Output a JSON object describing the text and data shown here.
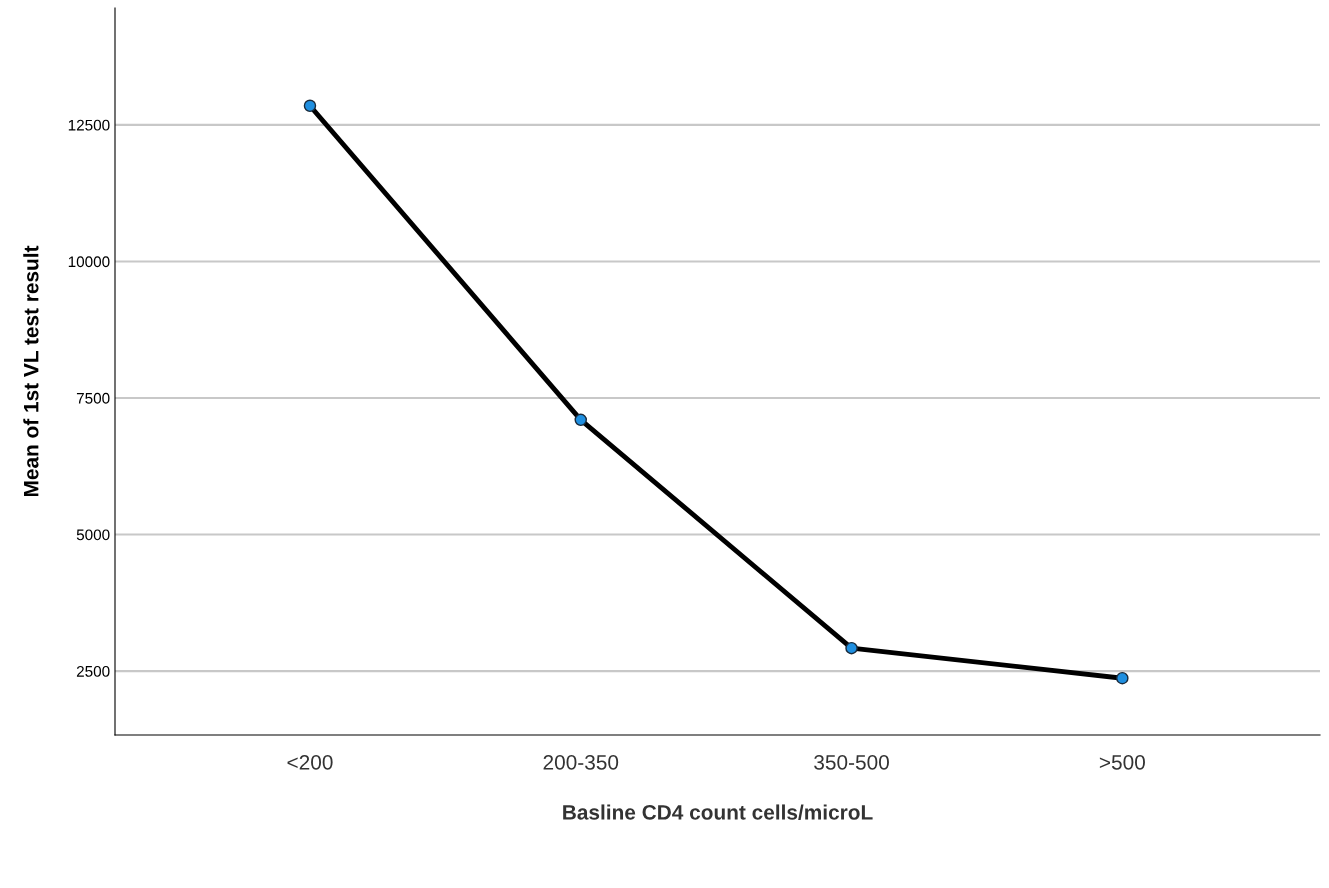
{
  "chart_data": {
    "type": "line",
    "xlabel": "Basline CD4 count cells/microL",
    "ylabel": "Mean of 1st VL test result",
    "categories": [
      "<200",
      "200-350",
      "350-500",
      ">500"
    ],
    "series": [
      {
        "color": "#000000",
        "values": [
          12850,
          7100,
          2920,
          2370
        ]
      }
    ],
    "marker": "circle",
    "line_style": "solid",
    "ylim": [
      1330,
      14640
    ],
    "yticks": [
      2500,
      5000,
      7500,
      10000,
      12500
    ],
    "grid": "y"
  }
}
